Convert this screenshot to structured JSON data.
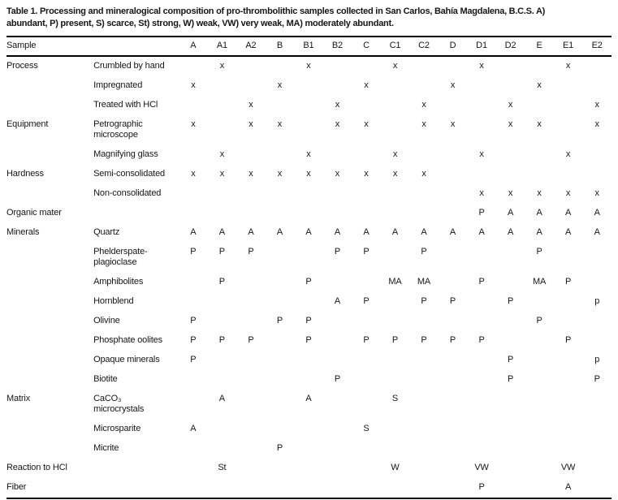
{
  "title": {
    "line1": "Table 1. Processing and mineralogical composition of pro-thrombolithic samples collected in San Carlos, Bahía Magdalena, B.C.S. A)",
    "line2": "abundant, P) present, S) scarce, St) strong, W) weak, VW) very weak, MA) moderately abundant."
  },
  "table": {
    "header": {
      "sample": "Sample",
      "columns": [
        "A",
        "A1",
        "A2",
        "B",
        "B1",
        "B2",
        "C",
        "C1",
        "C2",
        "D",
        "D1",
        "D2",
        "E",
        "E1",
        "E2"
      ]
    },
    "rows": [
      {
        "category": "Process",
        "label_lines": [
          "Crumbled by hand"
        ],
        "cells": [
          "",
          "x",
          "",
          "",
          "x",
          "",
          "",
          "x",
          "",
          "",
          "x",
          "",
          "",
          "x",
          ""
        ]
      },
      {
        "category": "",
        "label_lines": [
          "Impregnated"
        ],
        "cells": [
          "x",
          "",
          "",
          "x",
          "",
          "",
          "x",
          "",
          "",
          "x",
          "",
          "",
          "x",
          "",
          ""
        ]
      },
      {
        "category": "",
        "label_lines": [
          "Treated with HCl"
        ],
        "cells": [
          "",
          "",
          "x",
          "",
          "",
          "x",
          "",
          "",
          "x",
          "",
          "",
          "x",
          "",
          "",
          "x"
        ]
      },
      {
        "category": "Equipment",
        "label_lines": [
          "Petrographic",
          "microscope"
        ],
        "cells": [
          "x",
          "",
          "x",
          "x",
          "",
          "x",
          "x",
          "",
          "x",
          "x",
          "",
          "x",
          "x",
          "",
          "x"
        ]
      },
      {
        "category": "",
        "label_lines": [
          "Magnifying glass"
        ],
        "cells": [
          "",
          "x",
          "",
          "",
          "x",
          "",
          "",
          "x",
          "",
          "",
          "x",
          "",
          "",
          "x",
          ""
        ]
      },
      {
        "category": "Hardness",
        "label_lines": [
          "Semi-consolidated"
        ],
        "cells": [
          "x",
          "x",
          "x",
          "x",
          "x",
          "x",
          "x",
          "x",
          "x",
          "",
          "",
          "",
          "",
          "",
          ""
        ]
      },
      {
        "category": "",
        "label_lines": [
          "Non-consolidated"
        ],
        "cells": [
          "",
          "",
          "",
          "",
          "",
          "",
          "",
          "",
          "",
          "",
          "x",
          "x",
          "x",
          "x",
          "x"
        ]
      },
      {
        "category": "Organic mater",
        "label_lines": [],
        "cells": [
          "",
          "",
          "",
          "",
          "",
          "",
          "",
          "",
          "",
          "",
          "P",
          "A",
          "A",
          "A",
          "A"
        ]
      },
      {
        "category": "Minerals",
        "label_lines": [
          "Quartz"
        ],
        "cells": [
          "A",
          "A",
          "A",
          "A",
          "A",
          "A",
          "A",
          "A",
          "A",
          "A",
          "A",
          "A",
          "A",
          "A",
          "A"
        ]
      },
      {
        "category": "",
        "label_lines": [
          "Phelderspate-",
          "plagioclase"
        ],
        "cells": [
          "P",
          "P",
          "P",
          "",
          "",
          "P",
          "P",
          "",
          "P",
          "",
          "",
          "",
          "P",
          "",
          ""
        ]
      },
      {
        "category": "",
        "label_lines": [
          "Amphibolites"
        ],
        "cells": [
          "",
          "P",
          "",
          "",
          "P",
          "",
          "",
          "MA",
          "MA",
          "",
          "P",
          "",
          "MA",
          "P",
          ""
        ]
      },
      {
        "category": "",
        "label_lines": [
          "Hornblend"
        ],
        "cells": [
          "",
          "",
          "",
          "",
          "",
          "A",
          "P",
          "",
          "P",
          "P",
          "",
          "P",
          "",
          "",
          "p"
        ]
      },
      {
        "category": "",
        "label_lines": [
          "Olivine"
        ],
        "cells": [
          "P",
          "",
          "",
          "P",
          "P",
          "",
          "",
          "",
          "",
          "",
          "",
          "",
          "P",
          "",
          ""
        ]
      },
      {
        "category": "",
        "label_lines": [
          "Phosphate oolites"
        ],
        "cells": [
          "P",
          "P",
          "P",
          "",
          "P",
          "",
          "P",
          "P",
          "P",
          "P",
          "P",
          "",
          "",
          "P",
          ""
        ]
      },
      {
        "category": "",
        "label_lines": [
          "Opaque minerals"
        ],
        "cells": [
          "P",
          "",
          "",
          "",
          "",
          "",
          "",
          "",
          "",
          "",
          "",
          "P",
          "",
          "",
          "p"
        ]
      },
      {
        "category": "",
        "label_lines": [
          "Biotite"
        ],
        "cells": [
          "",
          "",
          "",
          "",
          "",
          "P",
          "",
          "",
          "",
          "",
          "",
          "P",
          "",
          "",
          "P"
        ]
      },
      {
        "category": "Matrix",
        "label_lines": [
          "CaCO₃",
          "microcrystals"
        ],
        "cells": [
          "",
          "A",
          "",
          "",
          "A",
          "",
          "",
          "S",
          "",
          "",
          "",
          "",
          "",
          "",
          ""
        ]
      },
      {
        "category": "",
        "label_lines": [
          "Microsparite"
        ],
        "cells": [
          "A",
          "",
          "",
          "",
          "",
          "",
          "S",
          "",
          "",
          "",
          "",
          "",
          "",
          "",
          ""
        ]
      },
      {
        "category": "",
        "label_lines": [
          "Micrite"
        ],
        "cells": [
          "",
          "",
          "",
          "P",
          "",
          "",
          "",
          "",
          "",
          "",
          "",
          "",
          "",
          "",
          ""
        ]
      },
      {
        "category": "Reaction to HCl",
        "label_lines": [],
        "cells": [
          "",
          "St",
          "",
          "",
          "",
          "",
          "",
          "W",
          "",
          "",
          "VW",
          "",
          "",
          "VW",
          ""
        ]
      },
      {
        "category": "Fiber",
        "label_lines": [],
        "cells": [
          "",
          "",
          "",
          "",
          "",
          "",
          "",
          "",
          "",
          "",
          "P",
          "",
          "",
          "A",
          ""
        ]
      }
    ]
  }
}
